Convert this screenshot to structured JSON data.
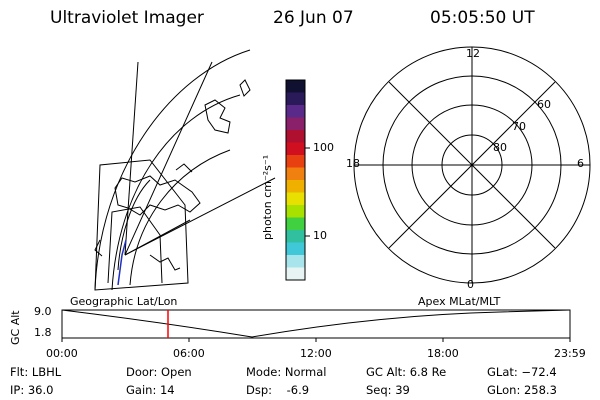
{
  "header": {
    "title": "Ultraviolet Imager",
    "date": "26 Jun 07",
    "time": "05:05:50 UT"
  },
  "colorbar": {
    "unit_label": "photon cm⁻²s⁻¹",
    "ticks": [
      "100",
      "10"
    ],
    "colors": [
      "#101030",
      "#2a1a5a",
      "#5a2a8a",
      "#8a1f6a",
      "#b01030",
      "#d01020",
      "#e84010",
      "#f08010",
      "#f0b000",
      "#e8e000",
      "#a8e000",
      "#40d040",
      "#30c0a0",
      "#40c8d8",
      "#a8e4ec",
      "#e8f4f4"
    ]
  },
  "geographic_panel": {
    "label": "Geographic Lat/Lon"
  },
  "polar_panel": {
    "label": "Apex MLat/MLT",
    "mlt_labels": [
      "12",
      "18",
      "6",
      "0"
    ],
    "mlat_labels": [
      "60",
      "70",
      "80"
    ]
  },
  "altitude_plot": {
    "ylabel": "GC Alt",
    "yticks": [
      "9.0",
      "1.8"
    ],
    "xticks": [
      "00:00",
      "06:00",
      "12:00",
      "18:00",
      "23:59"
    ],
    "marker_color": "#ff0000"
  },
  "footer": {
    "flt": "Flt: LBHL",
    "ip": "IP: 36.0",
    "door": "Door: Open",
    "gain": "Gain: 14",
    "mode": "Mode: Normal",
    "dsp": "Dsp:    -6.9",
    "gcalt": "GC Alt: 6.8 Re",
    "seq": "Seq: 39",
    "glat": "GLat: −72.4",
    "glon": "GLon: 258.3"
  }
}
